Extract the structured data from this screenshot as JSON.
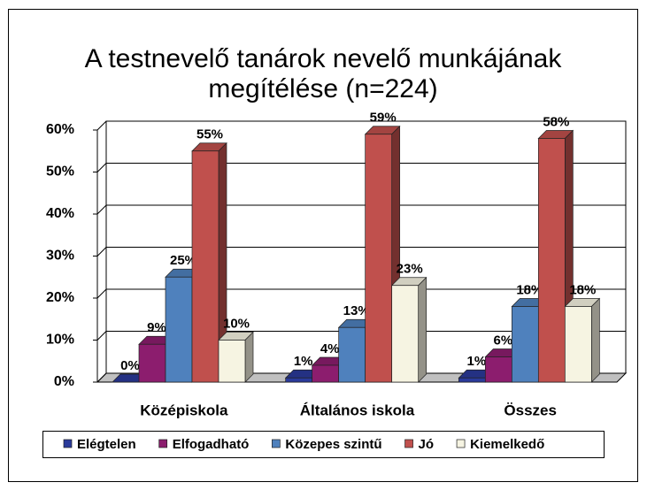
{
  "chart_data": {
    "type": "bar3d",
    "title": "A testnevelő tanárok nevelő munkájának megítélése (n=224)",
    "categories": [
      "Középiskola",
      "Általános iskola",
      "Összes"
    ],
    "series": [
      {
        "name": "Elégtelen",
        "color": "#2a3a9a",
        "values": [
          0,
          1,
          1
        ],
        "value_labels": [
          "0%",
          "1%",
          "1%"
        ]
      },
      {
        "name": "Elfogadható",
        "color": "#8c1d6e",
        "values": [
          9,
          4,
          6
        ],
        "value_labels": [
          "9%",
          "4%",
          "6%"
        ]
      },
      {
        "name": "Közepes szintű",
        "color": "#4f81bd",
        "values": [
          25,
          13,
          18
        ],
        "value_labels": [
          "25%",
          "13%",
          "18%"
        ]
      },
      {
        "name": "Jó",
        "color": "#c0504d",
        "values": [
          55,
          59,
          58
        ],
        "value_labels": [
          "55%",
          "59%",
          "58%"
        ]
      },
      {
        "name": "Kiemelkedő",
        "color": "#f6f4e2",
        "values": [
          10,
          23,
          18
        ],
        "value_labels": [
          "10%",
          "23%",
          "18%"
        ]
      }
    ],
    "ylim": [
      0,
      60
    ],
    "yticks": [
      {
        "value": 0,
        "label": "0%"
      },
      {
        "value": 10,
        "label": "10%"
      },
      {
        "value": 20,
        "label": "20%"
      },
      {
        "value": 30,
        "label": "30%"
      },
      {
        "value": 40,
        "label": "40%"
      },
      {
        "value": 50,
        "label": "50%"
      },
      {
        "value": 60,
        "label": "60%"
      }
    ],
    "grid": true,
    "legend": "bottom"
  }
}
